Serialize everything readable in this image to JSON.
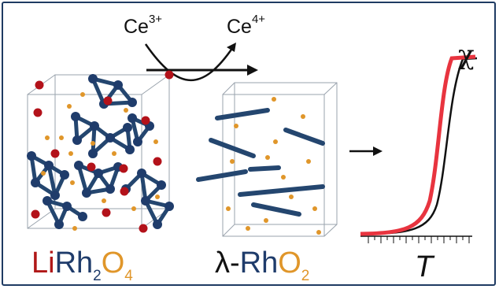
{
  "reaction": {
    "reactant": "Ce",
    "reactant_charge": "3+",
    "product": "Ce",
    "product_charge": "4+"
  },
  "formula_left": {
    "li": "Li",
    "rh": "Rh",
    "rh_sub": "2",
    "o": "O",
    "o_sub": "4"
  },
  "formula_right": {
    "prefix": "λ-",
    "rh": "Rh",
    "o": "O",
    "o_sub": "2"
  },
  "plot": {
    "y_label": "χ",
    "x_label": "T"
  },
  "colors": {
    "frame": "#1f3b63",
    "li_red": "#b01818",
    "rh_blue": "#1f3c6b",
    "o_orange": "#e0962a",
    "curve_red": "#e8343f",
    "curve_black": "#111111"
  }
}
